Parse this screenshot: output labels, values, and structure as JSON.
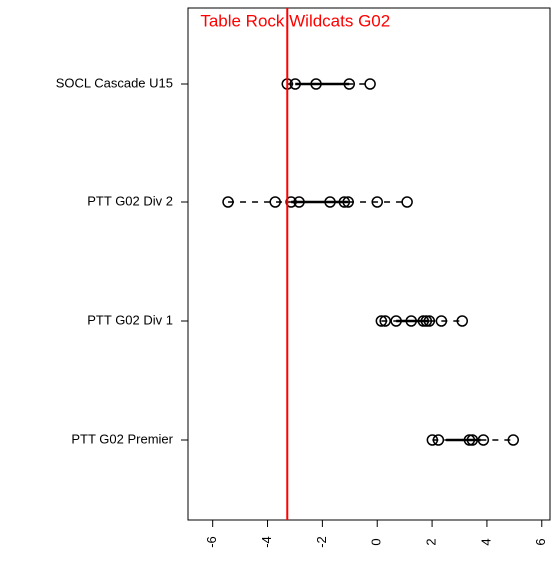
{
  "chart_data": {
    "type": "dotplot",
    "title": "Table Rock Wildcats G02",
    "categories": [
      "SOCL Cascade U15",
      "PTT G02 Div 2",
      "PTT G02 Div 1",
      "PTT G02 Premier"
    ],
    "values": [
      [
        -3.28,
        -2.99,
        -2.23,
        -1.02,
        -0.26
      ],
      [
        -5.44,
        -3.72,
        -3.14,
        -2.85,
        -1.72,
        -1.2,
        -1.06,
        0,
        1.09
      ],
      [
        0.15,
        0.29,
        0.69,
        1.24,
        1.68,
        1.79,
        1.9,
        2.34,
        3.1
      ],
      [
        2.01,
        2.23,
        3.36,
        3.47,
        3.87,
        4.96
      ]
    ],
    "reference_line": -3.28,
    "reference_color": "#ff0000",
    "color": "#000000",
    "xlim": [
      -6.9,
      6.3
    ],
    "xticks": [
      -6,
      -4,
      -2,
      0,
      2,
      4,
      6
    ]
  }
}
